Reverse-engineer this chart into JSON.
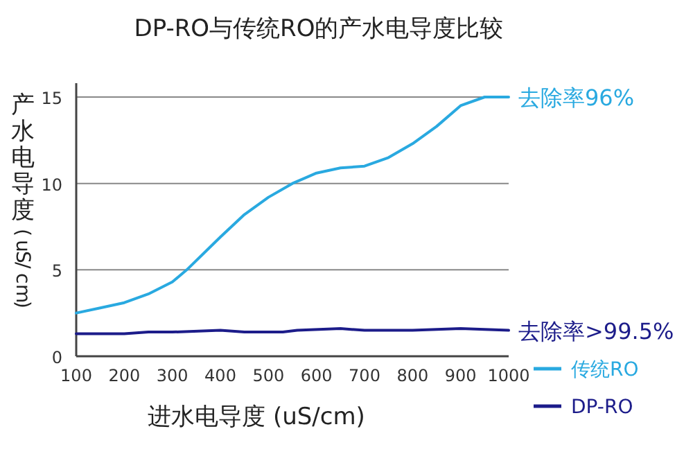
{
  "chart_data": {
    "type": "line",
    "title": "DP-RO与传统RO的产水电导度比较",
    "xlabel": "进水电导度 (uS/cm)",
    "ylabel": "产水电导度 (uS/cm)",
    "xlim": [
      100,
      1000
    ],
    "xticks": [
      100,
      200,
      300,
      400,
      500,
      600,
      700,
      800,
      900,
      1000
    ],
    "ylim": [
      0,
      15
    ],
    "yticks": [
      0,
      5,
      10,
      15
    ],
    "grid": "y",
    "legend": "bottom right",
    "series": [
      {
        "name": "传统RO",
        "color": "#29a9e0",
        "x": [
          100,
          150,
          200,
          250,
          300,
          330,
          400,
          450,
          500,
          550,
          600,
          650,
          700,
          750,
          800,
          850,
          900,
          950,
          1000
        ],
        "values": [
          2.5,
          2.8,
          3.1,
          3.6,
          4.3,
          5,
          6.9,
          8.2,
          9.2,
          10,
          10.6,
          10.9,
          11,
          11.5,
          12.3,
          13.3,
          14.5,
          15,
          15
        ]
      },
      {
        "name": "DP-RO",
        "color": "#1c1c8a",
        "x": [
          100,
          200,
          250,
          300,
          400,
          450,
          530,
          560,
          650,
          700,
          800,
          900,
          1000
        ],
        "values": [
          1.3,
          1.3,
          1.4,
          1.4,
          1.5,
          1.4,
          1.4,
          1.5,
          1.6,
          1.5,
          1.5,
          1.6,
          1.5
        ]
      }
    ],
    "annotations": [
      {
        "text": "去除率96%",
        "x": 1000,
        "y": 15
      },
      {
        "text": "去除率>99.5%",
        "x": 1000,
        "y": 1.5
      }
    ]
  }
}
